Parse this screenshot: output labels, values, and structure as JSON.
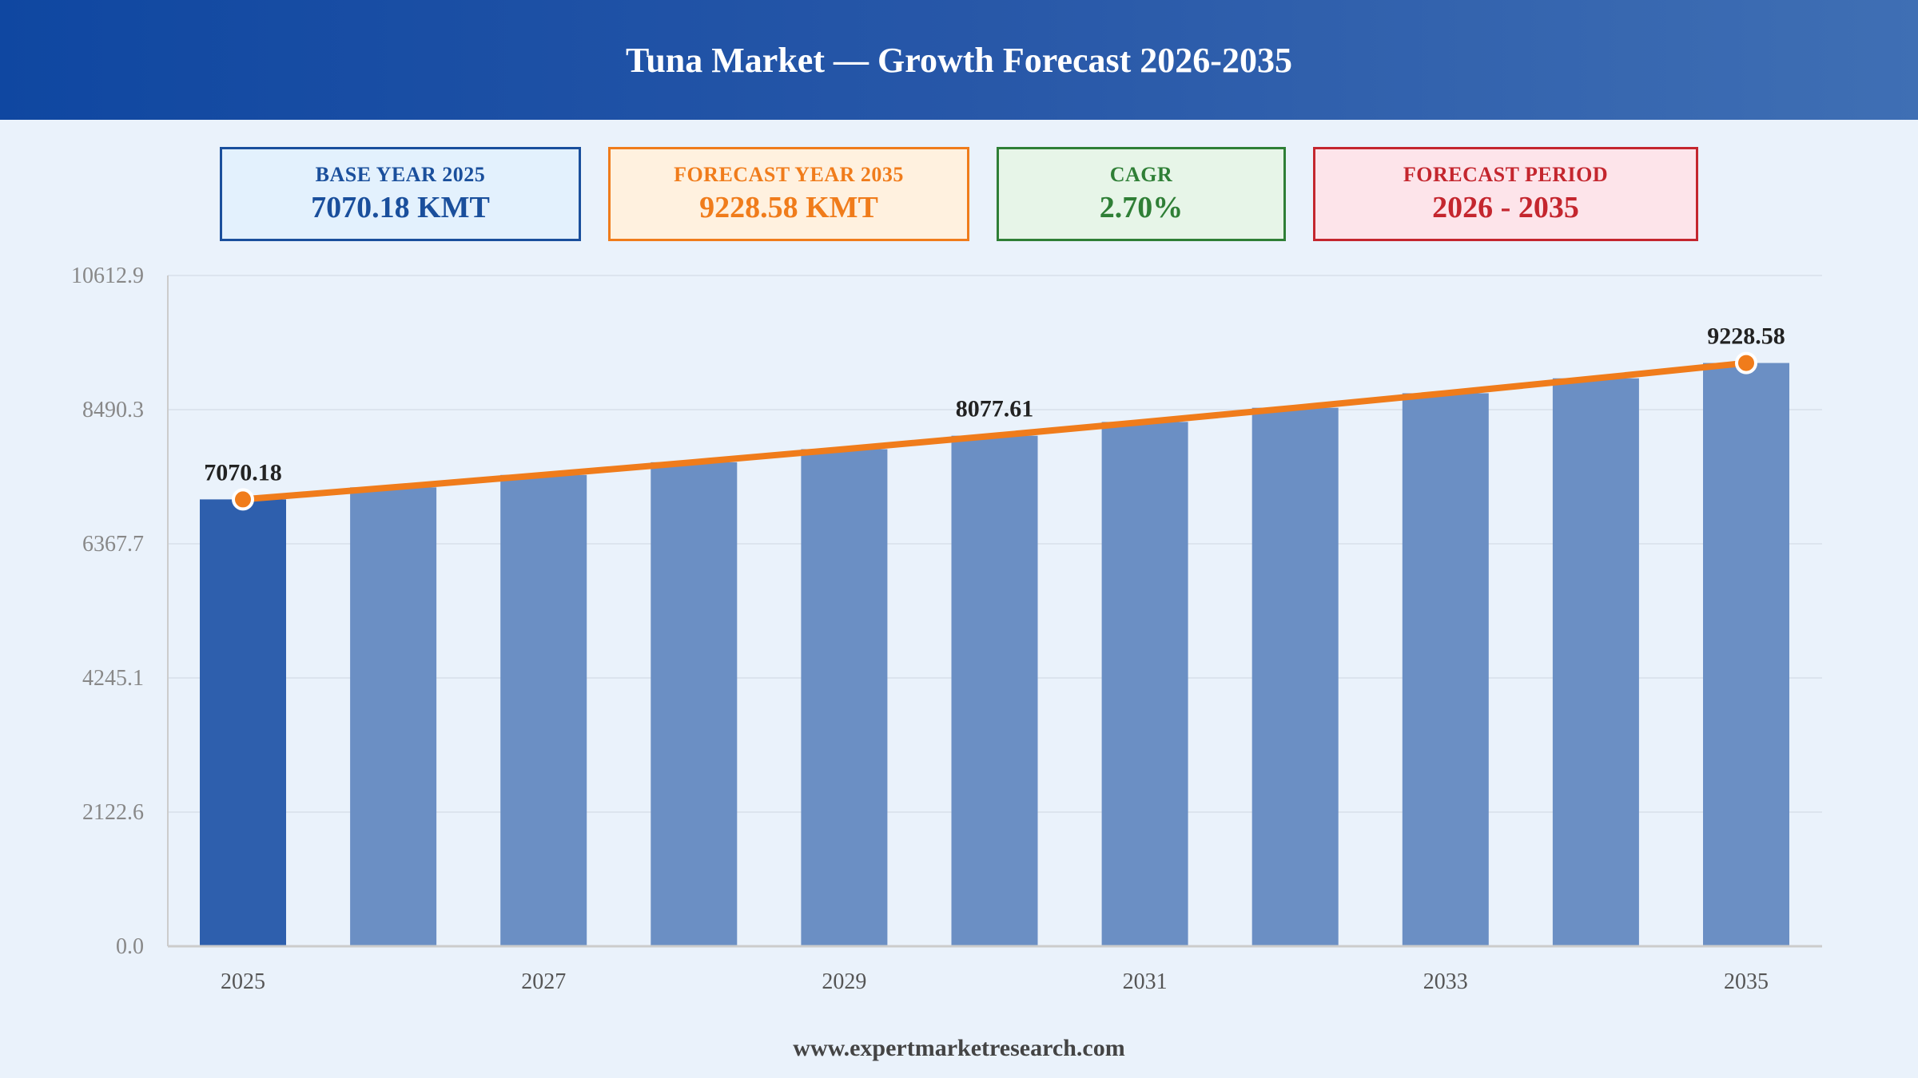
{
  "header": {
    "title": "Tuna Market — Growth Forecast 2026-2035"
  },
  "cards": {
    "base": {
      "label": "BASE YEAR 2025",
      "value": "7070.18 KMT"
    },
    "forecast": {
      "label": "FORECAST YEAR 2035",
      "value": "9228.58 KMT"
    },
    "cagr": {
      "label": "CAGR",
      "value": "2.70%"
    },
    "period": {
      "label": "FORECAST PERIOD",
      "value": "2026 - 2035"
    }
  },
  "footer": {
    "text": "www.expertmarketresearch.com"
  },
  "colors": {
    "base_bar": "#2e5fad",
    "forecast_bar": "#6b8fc4",
    "trend_line": "#f07c1b",
    "grid": "#d8e0ea",
    "axis_text": "#888888"
  },
  "chart_data": {
    "type": "bar",
    "categories": [
      "2025",
      "2026",
      "2027",
      "2028",
      "2029",
      "2030",
      "2031",
      "2032",
      "2033",
      "2034",
      "2035"
    ],
    "values": [
      7070.18,
      7261.08,
      7457.13,
      7658.47,
      7865.25,
      8077.61,
      8295.71,
      8519.69,
      8749.72,
      8985.97,
      9228.58
    ],
    "x_tick_labels": [
      "2025",
      "",
      "2027",
      "",
      "2029",
      "",
      "2031",
      "",
      "2033",
      "",
      "2035"
    ],
    "y_ticks": [
      "0.0",
      "2122.6",
      "4245.1",
      "6367.7",
      "8490.3",
      "10612.9"
    ],
    "ylim": [
      0,
      10612.9
    ],
    "data_labels": {
      "0": "7070.18",
      "5": "8077.61",
      "10": "9228.58"
    },
    "trend_line": true,
    "grid": true
  }
}
